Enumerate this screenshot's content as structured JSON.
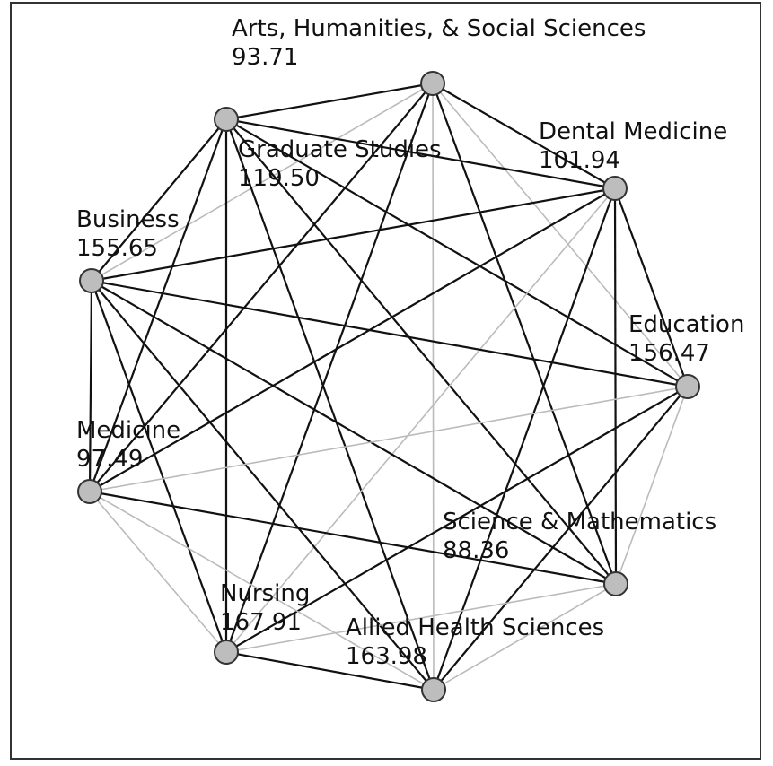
{
  "nodes": [
    {
      "label": "Arts, Humanities, & Social Sciences",
      "value": "93.71"
    },
    {
      "label": "Graduate Studies",
      "value": "119.50"
    },
    {
      "label": "Dental Medicine",
      "value": "101.94"
    },
    {
      "label": "Business",
      "value": "155.65"
    },
    {
      "label": "Education",
      "value": "156.47"
    },
    {
      "label": "Medicine",
      "value": "97.49"
    },
    {
      "label": "Science & Mathematics",
      "value": "88.36"
    },
    {
      "label": "Nursing",
      "value": "167.91"
    },
    {
      "label": "Allied Health Sciences",
      "value": "163.98"
    }
  ],
  "edges": [
    [
      0,
      1,
      "#111"
    ],
    [
      0,
      2,
      "#111"
    ],
    [
      0,
      3,
      "#bbb"
    ],
    [
      0,
      4,
      "#bbb"
    ],
    [
      0,
      5,
      "#111"
    ],
    [
      0,
      6,
      "#111"
    ],
    [
      0,
      7,
      "#111"
    ],
    [
      0,
      8,
      "#bbb"
    ],
    [
      1,
      2,
      "#111"
    ],
    [
      1,
      3,
      "#111"
    ],
    [
      1,
      4,
      "#111"
    ],
    [
      1,
      5,
      "#111"
    ],
    [
      1,
      6,
      "#111"
    ],
    [
      1,
      7,
      "#111"
    ],
    [
      1,
      8,
      "#111"
    ],
    [
      2,
      3,
      "#111"
    ],
    [
      2,
      4,
      "#111"
    ],
    [
      2,
      5,
      "#111"
    ],
    [
      2,
      6,
      "#111"
    ],
    [
      2,
      7,
      "#bbb"
    ],
    [
      2,
      8,
      "#111"
    ],
    [
      3,
      4,
      "#111"
    ],
    [
      3,
      5,
      "#111"
    ],
    [
      3,
      6,
      "#111"
    ],
    [
      3,
      7,
      "#111"
    ],
    [
      3,
      8,
      "#111"
    ],
    [
      4,
      5,
      "#bbb"
    ],
    [
      4,
      6,
      "#bbb"
    ],
    [
      4,
      7,
      "#111"
    ],
    [
      4,
      8,
      "#111"
    ],
    [
      5,
      6,
      "#111"
    ],
    [
      5,
      7,
      "#bbb"
    ],
    [
      5,
      8,
      "#bbb"
    ],
    [
      6,
      7,
      "#bbb"
    ],
    [
      6,
      8,
      "#bbb"
    ],
    [
      7,
      8,
      "#111"
    ]
  ]
}
